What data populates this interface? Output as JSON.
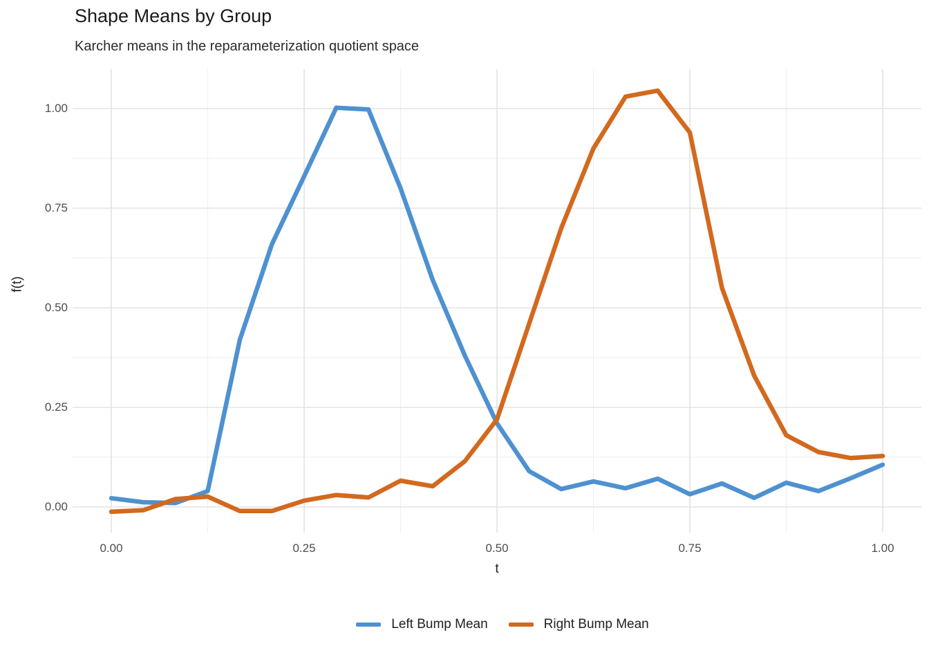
{
  "title": "Shape Means by Group",
  "subtitle": "Karcher means in the reparameterization quotient space",
  "colors": {
    "left_bump": "#4E91D1",
    "right_bump": "#D2691E",
    "grid_major": "#E3E3E3",
    "grid_minor": "#F0F0F0",
    "axis_text": "#4d4d4d",
    "title_text": "#1a1a1a",
    "background": "#ffffff"
  },
  "legend": {
    "items": [
      {
        "label": "Left Bump Mean",
        "color": "#4E91D1"
      },
      {
        "label": "Right Bump Mean",
        "color": "#D2691E"
      }
    ]
  },
  "chart_data": {
    "type": "line",
    "title": "Shape Means by Group",
    "subtitle": "Karcher means in the reparameterization quotient space",
    "xlabel": "t",
    "ylabel": "f(t)",
    "grid": "major and minor light-grey gridlines on white (ggplot theme_minimal), no axis lines, no tick marks",
    "legend_position": "bottom-center",
    "x_ticks": [
      "0.00",
      "0.25",
      "0.50",
      "0.75",
      "1.00"
    ],
    "x_tick_values": [
      0,
      0.25,
      0.5,
      0.75,
      1
    ],
    "x_minor_values": [
      0.125,
      0.375,
      0.625,
      0.875
    ],
    "y_ticks": [
      "0.00",
      "0.25",
      "0.50",
      "0.75",
      "1.00"
    ],
    "y_tick_values": [
      0,
      0.25,
      0.5,
      0.75,
      1
    ],
    "y_minor_values": [
      0.125,
      0.375,
      0.625,
      0.875
    ],
    "xlim": [
      -0.05,
      1.05
    ],
    "ylim": [
      -0.065,
      1.098
    ],
    "x": [
      0,
      0.0417,
      0.0833,
      0.125,
      0.1667,
      0.2083,
      0.25,
      0.2917,
      0.3333,
      0.375,
      0.4167,
      0.4583,
      0.5,
      0.5417,
      0.5833,
      0.625,
      0.6667,
      0.7083,
      0.75,
      0.7917,
      0.8333,
      0.875,
      0.9167,
      0.9583,
      1.0
    ],
    "series": [
      {
        "name": "Left Bump Mean",
        "color": "#4E91D1",
        "values": [
          0.022,
          0.012,
          0.01,
          0.04,
          0.42,
          0.66,
          0.83,
          1.002,
          0.998,
          0.8,
          0.57,
          0.38,
          0.21,
          0.09,
          0.045,
          0.064,
          0.047,
          0.071,
          0.032,
          0.059,
          0.023,
          0.061,
          0.04,
          0.072,
          0.106
        ]
      },
      {
        "name": "Right Bump Mean",
        "color": "#D2691E",
        "values": [
          -0.012,
          -0.008,
          0.02,
          0.026,
          -0.01,
          -0.01,
          0.016,
          0.03,
          0.024,
          0.066,
          0.052,
          0.115,
          0.22,
          0.46,
          0.7,
          0.9,
          1.03,
          1.045,
          0.94,
          0.55,
          0.33,
          0.18,
          0.138,
          0.123,
          0.128
        ]
      }
    ]
  }
}
